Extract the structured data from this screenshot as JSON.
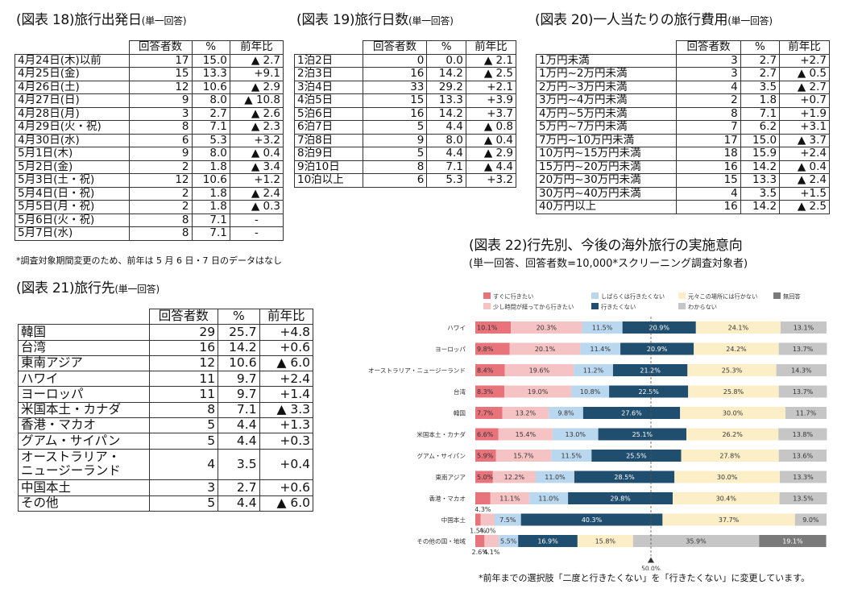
{
  "t18": {
    "title": "(図表 18)旅行出発日",
    "sub": "(単一回答)",
    "headers": [
      "回答者数",
      "%",
      "前年比"
    ],
    "rows": [
      [
        "4月24日(木)以前",
        "17",
        "15.0",
        "▲ 2.7"
      ],
      [
        "4月25日(金)",
        "15",
        "13.3",
        "+9.1"
      ],
      [
        "4月26日(土)",
        "12",
        "10.6",
        "▲ 2.9"
      ],
      [
        "4月27日(日)",
        "9",
        "8.0",
        "▲ 10.8"
      ],
      [
        "4月28日(月)",
        "3",
        "2.7",
        "▲ 2.6"
      ],
      [
        "4月29日(火・祝)",
        "8",
        "7.1",
        "▲ 2.3"
      ],
      [
        "4月30日(水)",
        "6",
        "5.3",
        "+3.2"
      ],
      [
        "5月1日(木)",
        "9",
        "8.0",
        "▲ 0.4"
      ],
      [
        "5月2日(金)",
        "2",
        "1.8",
        "▲ 3.4"
      ],
      [
        "5月3日(土・祝)",
        "12",
        "10.6",
        "+1.2"
      ],
      [
        "5月4日(日・祝)",
        "2",
        "1.8",
        "▲ 2.4"
      ],
      [
        "5月5日(月・祝)",
        "2",
        "1.8",
        "▲ 0.3"
      ],
      [
        "5月6日(火・祝)",
        "8",
        "7.1",
        "-"
      ],
      [
        "5月7日(水)",
        "8",
        "7.1",
        "-"
      ]
    ],
    "note": "*調査対象期間変更のため、前年は 5 月 6 日・7 日のデータはなし"
  },
  "t19": {
    "title": "(図表 19)旅行日数",
    "sub": "(単一回答)",
    "headers": [
      "回答者数",
      "%",
      "前年比"
    ],
    "rows": [
      [
        "1泊2日",
        "0",
        "0.0",
        "▲ 2.1"
      ],
      [
        "2泊3日",
        "16",
        "14.2",
        "▲ 2.5"
      ],
      [
        "3泊4日",
        "33",
        "29.2",
        "+2.1"
      ],
      [
        "4泊5日",
        "15",
        "13.3",
        "+3.9"
      ],
      [
        "5泊6日",
        "16",
        "14.2",
        "+3.7"
      ],
      [
        "6泊7日",
        "5",
        "4.4",
        "▲ 0.8"
      ],
      [
        "7泊8日",
        "9",
        "8.0",
        "▲ 0.4"
      ],
      [
        "8泊9日",
        "5",
        "4.4",
        "▲ 2.9"
      ],
      [
        "9泊10日",
        "8",
        "7.1",
        "▲ 4.4"
      ],
      [
        "10泊以上",
        "6",
        "5.3",
        "+3.2"
      ]
    ]
  },
  "t20": {
    "title": "(図表 20)一人当たりの旅行費用",
    "sub": "(単一回答)",
    "headers": [
      "回答者数",
      "%",
      "前年比"
    ],
    "rows": [
      [
        "1万円未満",
        "3",
        "2.7",
        "+2.7"
      ],
      [
        "1万円~2万円未満",
        "3",
        "2.7",
        "▲ 0.5"
      ],
      [
        "2万円~3万円未満",
        "4",
        "3.5",
        "▲ 2.7"
      ],
      [
        "3万円~4万円未満",
        "2",
        "1.8",
        "+0.7"
      ],
      [
        "4万円~5万円未満",
        "8",
        "7.1",
        "+1.9"
      ],
      [
        "5万円~7万円未満",
        "7",
        "6.2",
        "+3.1"
      ],
      [
        "7万円~10万円未満",
        "17",
        "15.0",
        "▲ 3.7"
      ],
      [
        "10万円~15万円未満",
        "18",
        "15.9",
        "+2.4"
      ],
      [
        "15万円~20万円未満",
        "16",
        "14.2",
        "▲ 0.4"
      ],
      [
        "20万円~30万円未満",
        "15",
        "13.3",
        "▲ 2.4"
      ],
      [
        "30万円~40万円未満",
        "4",
        "3.5",
        "+1.5"
      ],
      [
        "40万円以上",
        "16",
        "14.2",
        "▲ 2.5"
      ]
    ]
  },
  "t21": {
    "title": "(図表 21)旅行先",
    "sub": "(単一回答)",
    "headers": [
      "回答者数",
      "%",
      "前年比"
    ],
    "rows": [
      [
        "韓国",
        "29",
        "25.7",
        "+4.8"
      ],
      [
        "台湾",
        "16",
        "14.2",
        "+0.6"
      ],
      [
        "東南アジア",
        "12",
        "10.6",
        "▲ 6.0"
      ],
      [
        "ハワイ",
        "11",
        "9.7",
        "+2.4"
      ],
      [
        "ヨーロッパ",
        "11",
        "9.7",
        "+1.4"
      ],
      [
        "米国本土・カナダ",
        "8",
        "7.1",
        "▲ 3.3"
      ],
      [
        "香港・マカオ",
        "5",
        "4.4",
        "+1.3"
      ],
      [
        "グアム・サイパン",
        "5",
        "4.4",
        "+0.3"
      ],
      [
        "オーストラリア・\nニュージーランド",
        "4",
        "3.5",
        "+0.4"
      ],
      [
        "中国本土",
        "3",
        "2.7",
        "+0.6"
      ],
      [
        "その他",
        "5",
        "4.4",
        "▲ 6.0"
      ]
    ]
  },
  "t22": {
    "title": "(図表 22)行先別、今後の海外旅行の実施意向",
    "subtitle": "(単一回答、回答者数=10,000*スクリーニング調査対象者)",
    "note": "*前年までの選択肢「二度と行きたくない」を「行きたくない」に変更しています。"
  },
  "chart_data": {
    "type": "bar",
    "stacked": true,
    "orientation": "horizontal",
    "xlim": [
      0,
      100
    ],
    "legend_position": "top",
    "reference_line": {
      "x": 50.0,
      "label": "50.0%"
    },
    "colors": [
      "#e8737a",
      "#f6c3c5",
      "#b9d7ee",
      "#1f4e6e",
      "#fcefc7",
      "#c6c6c6",
      "#7a7a7a"
    ],
    "series": [
      {
        "name": "すぐに行きたい",
        "values": [
          10.1,
          9.8,
          8.4,
          8.3,
          7.7,
          6.6,
          5.9,
          5.0,
          4.3,
          1.5,
          2.6
        ]
      },
      {
        "name": "少し時間が経ってから行きたい",
        "values": [
          20.3,
          20.1,
          19.6,
          19.0,
          13.2,
          15.4,
          15.7,
          12.2,
          11.1,
          4.0,
          4.1
        ]
      },
      {
        "name": "しばらくは行きたくない",
        "values": [
          11.5,
          11.4,
          11.2,
          10.8,
          9.8,
          13.0,
          11.5,
          11.0,
          11.0,
          7.5,
          5.5
        ]
      },
      {
        "name": "行きたくない",
        "values": [
          20.9,
          20.9,
          21.2,
          22.5,
          27.6,
          25.1,
          25.5,
          28.5,
          29.8,
          40.3,
          16.9
        ]
      },
      {
        "name": "元々この場所には行かない",
        "values": [
          24.1,
          24.2,
          25.3,
          25.8,
          30.0,
          26.2,
          27.8,
          30.0,
          30.4,
          37.7,
          15.8
        ]
      },
      {
        "name": "わからない",
        "values": [
          13.1,
          13.7,
          14.3,
          13.7,
          11.7,
          13.8,
          13.6,
          13.3,
          13.5,
          9.0,
          35.9
        ]
      },
      {
        "name": "無回答",
        "values": [
          0,
          0,
          0,
          0,
          0,
          0,
          0,
          0,
          0,
          0,
          19.1
        ]
      }
    ],
    "categories": [
      "ハワイ",
      "ヨーロッパ",
      "オーストラリア・ニュージーランド",
      "台湾",
      "韓国",
      "米国本土・カナダ",
      "グアム・サイパン",
      "東南アジア",
      "香港・マカオ",
      "中国本土",
      "その他の国・地域"
    ]
  }
}
